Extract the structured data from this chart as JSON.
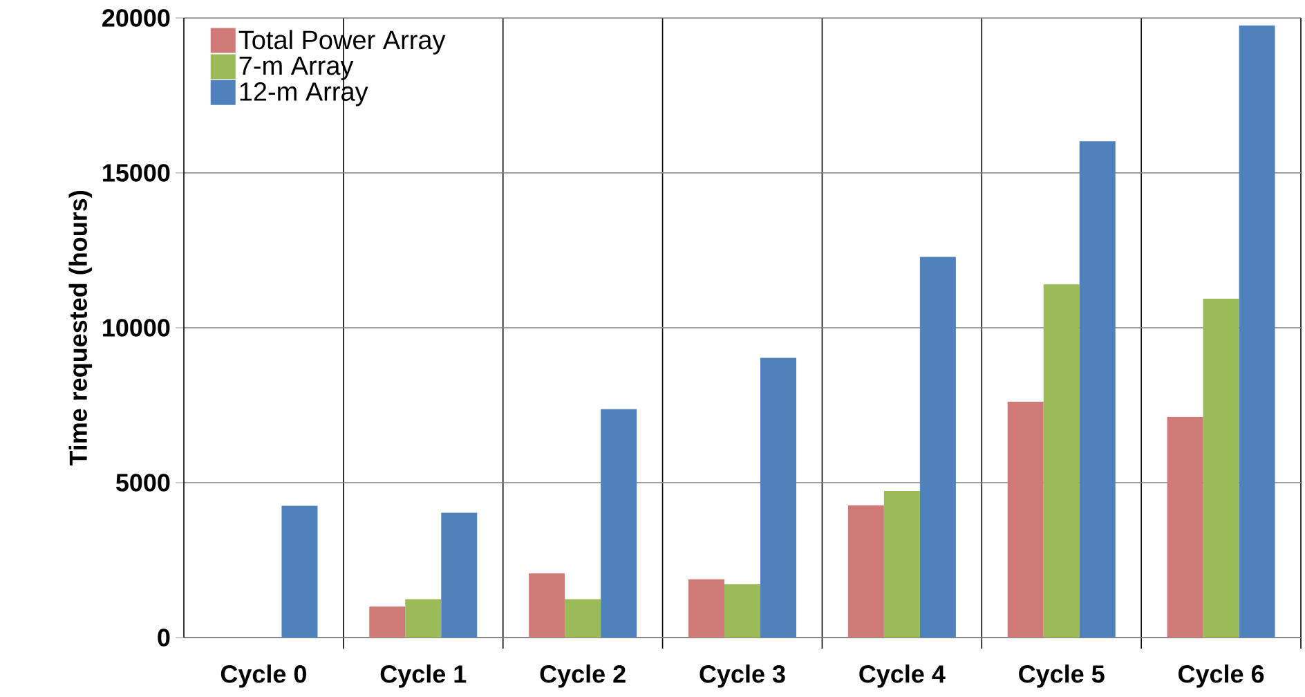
{
  "chart_data": {
    "type": "bar",
    "ylabel": "Time requested (hours)",
    "categories": [
      "Cycle 0",
      "Cycle 1",
      "Cycle 2",
      "Cycle 3",
      "Cycle 4",
      "Cycle 5",
      "Cycle 6"
    ],
    "series": [
      {
        "name": "Total Power Array",
        "color": "#d07a78",
        "values": [
          0,
          1000,
          2070,
          1880,
          4270,
          7610,
          7120
        ]
      },
      {
        "name": "7-m Array",
        "color": "#9bbb59",
        "values": [
          0,
          1240,
          1240,
          1720,
          4730,
          11400,
          10940
        ]
      },
      {
        "name": "12-m Array",
        "color": "#4f81bd",
        "values": [
          4250,
          4030,
          7370,
          9030,
          12290,
          16020,
          19760
        ]
      }
    ],
    "ylim": [
      0,
      20000
    ],
    "yticks": [
      0,
      5000,
      10000,
      15000,
      20000
    ],
    "grid": true,
    "legend": "top left"
  }
}
